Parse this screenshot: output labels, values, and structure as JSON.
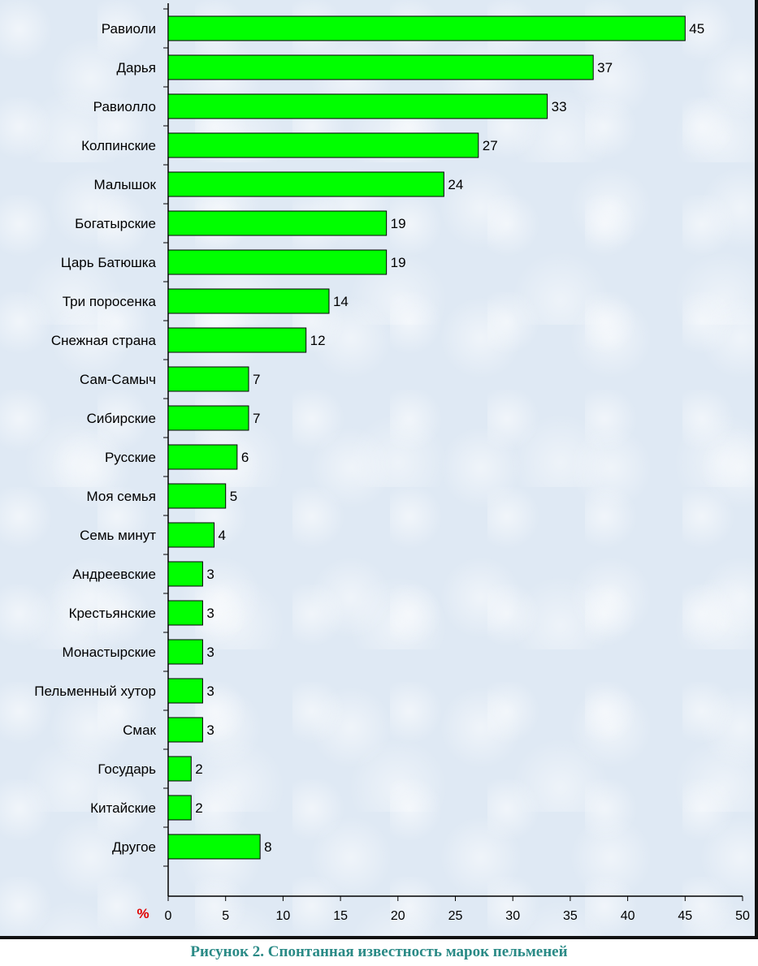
{
  "chart_data": {
    "type": "bar",
    "orientation": "horizontal",
    "categories": [
      "Равиоли",
      "Дарья",
      "Равиолло",
      "Колпинские",
      "Малышок",
      "Богатырские",
      "Царь Батюшка",
      "Три поросенка",
      "Снежная страна",
      "Сам-Самыч",
      "Сибирские",
      "Русские",
      "Моя семья",
      "Семь минут",
      "Андреевские",
      "Крестьянские",
      "Монастырские",
      "Пельменный хутор",
      "Смак",
      "Государь",
      "Китайские",
      "Другое"
    ],
    "values": [
      45,
      37,
      33,
      27,
      24,
      19,
      19,
      14,
      12,
      7,
      7,
      6,
      5,
      4,
      3,
      3,
      3,
      3,
      3,
      2,
      2,
      8
    ],
    "xlim": [
      0,
      50
    ],
    "x_ticks": [
      0,
      5,
      10,
      15,
      20,
      25,
      30,
      35,
      40,
      45,
      50
    ],
    "xlabel": "%",
    "title": "",
    "bar_color": "#00ff00",
    "unit_color": "#e00000",
    "data_labels": true
  },
  "caption": "Рисунок 2. Спонтанная известность марок пельменей"
}
